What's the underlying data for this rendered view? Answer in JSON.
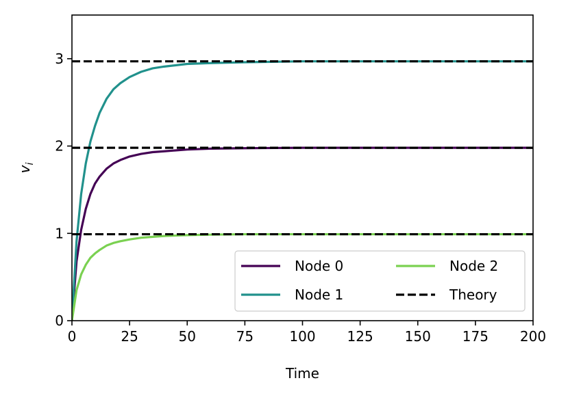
{
  "chart_data": {
    "type": "line",
    "xlabel": "Time",
    "ylabel": "v",
    "ylabel_subscript": "i",
    "xlim": [
      0,
      200
    ],
    "ylim": [
      0,
      3.5
    ],
    "xticks": [
      0,
      25,
      50,
      75,
      100,
      125,
      150,
      175,
      200
    ],
    "yticks": [
      0,
      1,
      2,
      3
    ],
    "grid": false,
    "legend_position": "lower-right",
    "legend_columns": 2,
    "series": [
      {
        "name": "Node 0",
        "color": "#440154",
        "style": "solid",
        "x": [
          0,
          2,
          4,
          6,
          8,
          10,
          12,
          15,
          18,
          21,
          25,
          30,
          35,
          40,
          50,
          60,
          75,
          100,
          125,
          150,
          175,
          200
        ],
        "y": [
          0,
          0.68,
          1.04,
          1.28,
          1.45,
          1.57,
          1.65,
          1.74,
          1.8,
          1.84,
          1.88,
          1.91,
          1.93,
          1.94,
          1.96,
          1.97,
          1.975,
          1.98,
          1.98,
          1.98,
          1.98,
          1.98
        ]
      },
      {
        "name": "Node 1",
        "color": "#21918c",
        "style": "solid",
        "x": [
          0,
          2,
          4,
          6,
          8,
          10,
          12,
          15,
          18,
          21,
          25,
          30,
          35,
          40,
          50,
          60,
          75,
          100,
          125,
          150,
          175,
          200
        ],
        "y": [
          0,
          0.91,
          1.45,
          1.8,
          2.05,
          2.23,
          2.38,
          2.54,
          2.65,
          2.72,
          2.79,
          2.85,
          2.89,
          2.91,
          2.94,
          2.95,
          2.96,
          2.97,
          2.97,
          2.97,
          2.97,
          2.97
        ]
      },
      {
        "name": "Node 2",
        "color": "#7ad151",
        "style": "solid",
        "x": [
          0,
          2,
          4,
          6,
          8,
          10,
          12,
          15,
          18,
          21,
          25,
          30,
          35,
          40,
          50,
          60,
          75,
          100,
          125,
          150,
          175,
          200
        ],
        "y": [
          0,
          0.35,
          0.53,
          0.64,
          0.72,
          0.77,
          0.81,
          0.86,
          0.89,
          0.91,
          0.93,
          0.95,
          0.96,
          0.97,
          0.98,
          0.985,
          0.99,
          0.99,
          0.99,
          0.99,
          0.99,
          0.99
        ]
      }
    ],
    "reference_lines": {
      "name": "Theory",
      "color": "#000000",
      "style": "dashed",
      "y": [
        0.99,
        1.98,
        2.97
      ]
    }
  }
}
